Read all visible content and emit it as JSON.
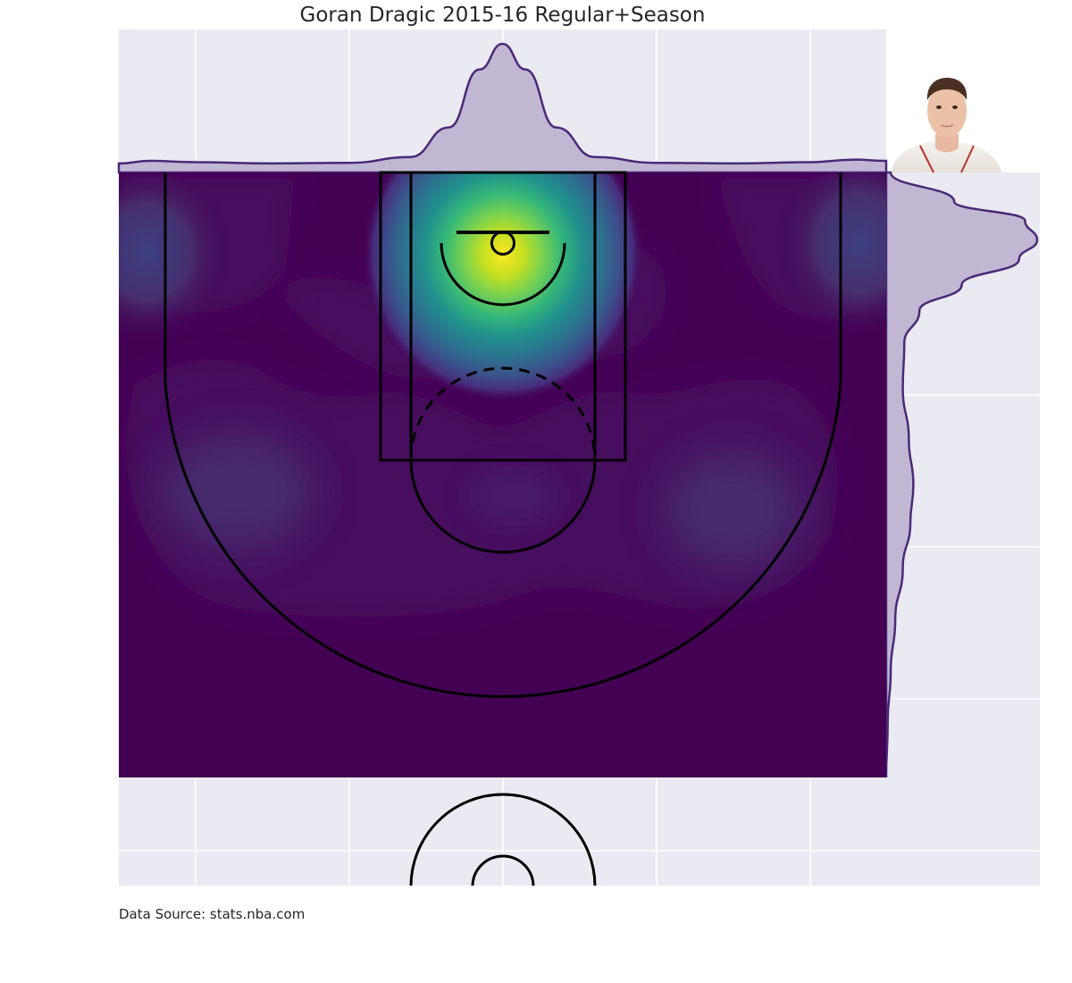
{
  "chart_data": {
    "type": "heatmap",
    "title": "Goran Dragic 2015-16 Regular+Season",
    "source": "Data Source: stats.nba.com",
    "subject": "shot chart kernel density with marginal distributions",
    "player_photo": "player-headshot",
    "xlim": [
      -250,
      250
    ],
    "ylim": [
      422.5,
      -47.5
    ],
    "colormap": "viridis",
    "style": "seaborn-darkgrid",
    "grid": true,
    "hotspots": [
      {
        "name": "restricted-area",
        "x": 0,
        "y": 5,
        "intensity": 1.0
      },
      {
        "name": "left-corner-three",
        "x": -230,
        "y": 5,
        "intensity": 0.09
      },
      {
        "name": "right-corner-three",
        "x": 232,
        "y": 5,
        "intensity": 0.1
      },
      {
        "name": "left-wing-three",
        "x": -190,
        "y": 195,
        "intensity": 0.05
      },
      {
        "name": "right-wing-three",
        "x": 200,
        "y": 195,
        "intensity": 0.05
      },
      {
        "name": "top-key",
        "x": -10,
        "y": 215,
        "intensity": 0.035
      }
    ],
    "x_marginal": [
      [
        -250,
        0.07
      ],
      [
        -230,
        0.09
      ],
      [
        -200,
        0.08
      ],
      [
        -150,
        0.07
      ],
      [
        -100,
        0.075
      ],
      [
        -60,
        0.12
      ],
      [
        -35,
        0.35
      ],
      [
        -15,
        0.8
      ],
      [
        0,
        1.0
      ],
      [
        15,
        0.8
      ],
      [
        35,
        0.35
      ],
      [
        60,
        0.12
      ],
      [
        100,
        0.075
      ],
      [
        150,
        0.07
      ],
      [
        200,
        0.08
      ],
      [
        230,
        0.1
      ],
      [
        250,
        0.09
      ]
    ],
    "y_marginal": [
      [
        -47.5,
        0.03
      ],
      [
        -25,
        0.45
      ],
      [
        -10,
        0.92
      ],
      [
        5,
        1.0
      ],
      [
        20,
        0.88
      ],
      [
        40,
        0.5
      ],
      [
        60,
        0.22
      ],
      [
        85,
        0.12
      ],
      [
        120,
        0.11
      ],
      [
        160,
        0.15
      ],
      [
        195,
        0.18
      ],
      [
        225,
        0.16
      ],
      [
        260,
        0.11
      ],
      [
        300,
        0.06
      ],
      [
        340,
        0.03
      ],
      [
        380,
        0.01
      ],
      [
        422.5,
        0.0
      ]
    ]
  }
}
